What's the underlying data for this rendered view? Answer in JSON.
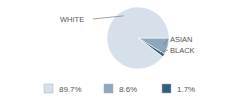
{
  "chart_data": {
    "type": "pie",
    "categories": [
      "WHITE",
      "ASIAN",
      "BLACK"
    ],
    "values": [
      89.7,
      8.6,
      1.7
    ],
    "value_labels": [
      "89.7%",
      "8.6%",
      "1.7%"
    ],
    "colors": [
      "#d5e0ea",
      "#8ea7bd",
      "#2f5f7d"
    ],
    "legend": "bottom"
  }
}
